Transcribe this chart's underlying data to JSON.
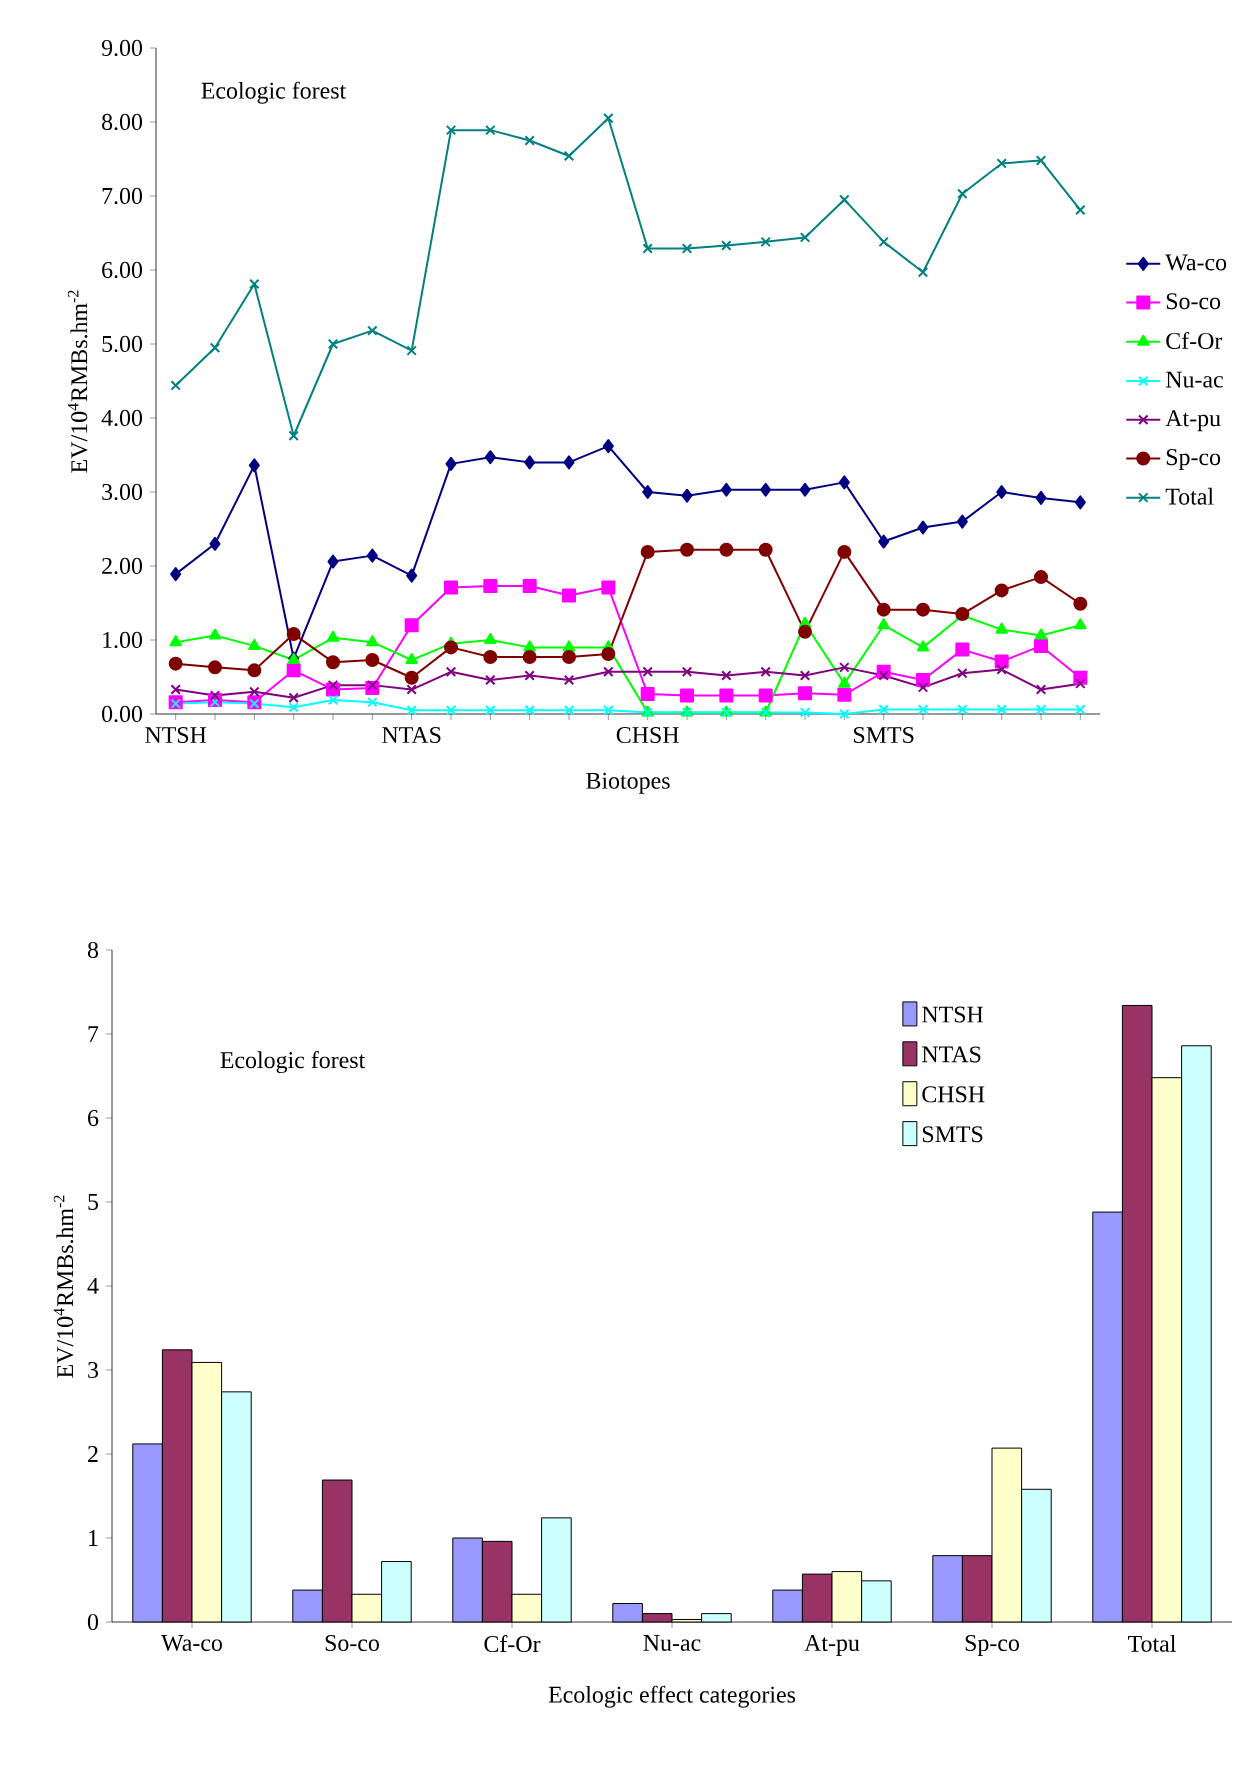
{
  "chart_data": [
    {
      "type": "line",
      "annotations": [
        "Ecologic forest"
      ],
      "xlabel": "Biotopes",
      "ylabel": "EV/10$^{4}$RMBs.hm$^{-2}$",
      "categories": [
        "NTSH",
        null,
        null,
        null,
        null,
        null,
        "NTAS",
        null,
        null,
        null,
        null,
        null,
        "CHSH",
        null,
        null,
        null,
        null,
        null,
        "SMTS",
        null,
        null,
        null,
        null,
        null
      ],
      "ylim": [
        0,
        9
      ],
      "yticks": [
        {
          "value": 0,
          "label": "0.00"
        },
        {
          "value": 1,
          "label": "1.00"
        },
        {
          "value": 2,
          "label": "2.00"
        },
        {
          "value": 3,
          "label": "3.00"
        },
        {
          "value": 4,
          "label": "4.00"
        },
        {
          "value": 5,
          "label": "5.00"
        },
        {
          "value": 6,
          "label": "6.00"
        },
        {
          "value": 7,
          "label": "7.00"
        },
        {
          "value": 8,
          "label": "8.00"
        },
        {
          "value": 9,
          "label": "9.00"
        }
      ],
      "legend": "right",
      "series": [
        {
          "name": "Wa-co",
          "color": "#000080",
          "marker": "diamond",
          "values": [
            1.89,
            2.3,
            3.36,
            0.75,
            2.06,
            2.14,
            1.87,
            3.38,
            3.47,
            3.4,
            3.4,
            3.62,
            3.0,
            2.95,
            3.03,
            3.03,
            3.03,
            3.13,
            2.33,
            2.52,
            2.6,
            3.0,
            2.92,
            2.86
          ]
        },
        {
          "name": "So-co",
          "color": "#ff00ff",
          "marker": "square",
          "values": [
            0.16,
            0.19,
            0.16,
            0.59,
            0.33,
            0.35,
            1.2,
            1.71,
            1.73,
            1.73,
            1.6,
            1.71,
            0.27,
            0.25,
            0.25,
            0.25,
            0.28,
            0.26,
            0.57,
            0.46,
            0.87,
            0.71,
            0.92,
            0.49
          ]
        },
        {
          "name": "Cf-Or",
          "color": "#00ff00",
          "marker": "triangle",
          "values": [
            0.97,
            1.06,
            0.92,
            0.73,
            1.03,
            0.97,
            0.73,
            0.95,
            1.0,
            0.9,
            0.9,
            0.9,
            0.02,
            0.02,
            0.02,
            0.02,
            1.22,
            0.41,
            1.2,
            0.9,
            1.33,
            1.14,
            1.06,
            1.2
          ]
        },
        {
          "name": "Nu-ac",
          "color": "#00ffff",
          "marker": "cross",
          "values": [
            0.14,
            0.16,
            0.14,
            0.09,
            0.19,
            0.16,
            0.05,
            0.05,
            0.05,
            0.05,
            0.05,
            0.05,
            0.02,
            0.02,
            0.02,
            0.02,
            0.02,
            0.0,
            0.06,
            0.06,
            0.06,
            0.06,
            0.06,
            0.06
          ]
        },
        {
          "name": "At-pu",
          "color": "#800080",
          "marker": "cross",
          "values": [
            0.33,
            0.25,
            0.3,
            0.22,
            0.39,
            0.39,
            0.33,
            0.57,
            0.46,
            0.52,
            0.46,
            0.57,
            0.57,
            0.57,
            0.52,
            0.57,
            0.52,
            0.63,
            0.52,
            0.36,
            0.55,
            0.6,
            0.33,
            0.41
          ]
        },
        {
          "name": "Sp-co",
          "color": "#800000",
          "marker": "circle",
          "values": [
            0.68,
            0.63,
            0.59,
            1.08,
            0.7,
            0.73,
            0.49,
            0.9,
            0.77,
            0.77,
            0.77,
            0.81,
            2.19,
            2.22,
            2.22,
            2.22,
            1.11,
            2.19,
            1.41,
            1.41,
            1.35,
            1.67,
            1.85,
            1.49
          ]
        },
        {
          "name": "Total",
          "color": "#008080",
          "marker": "cross",
          "values": [
            4.44,
            4.95,
            5.81,
            3.76,
            5.0,
            5.18,
            4.91,
            7.89,
            7.89,
            7.75,
            7.54,
            8.05,
            6.29,
            6.29,
            6.33,
            6.38,
            6.44,
            6.95,
            6.38,
            5.97,
            7.03,
            7.44,
            7.48,
            6.81
          ]
        }
      ]
    },
    {
      "type": "bar",
      "annotations": [
        "Ecologic forest"
      ],
      "xlabel": "Ecologic effect categories",
      "ylabel": "EV/10$^{4}$RMBs.hm$^{-2}$",
      "categories": [
        "Wa-co",
        "So-co",
        "Cf-Or",
        "Nu-ac",
        "At-pu",
        "Sp-co",
        "Total"
      ],
      "ylim": [
        0,
        8
      ],
      "yticks": [
        0,
        1,
        2,
        3,
        4,
        5,
        6,
        7,
        8
      ],
      "legend": "top right",
      "series": [
        {
          "name": "NTSH",
          "color": "#9999ff",
          "values": [
            2.12,
            0.38,
            1.0,
            0.22,
            0.38,
            0.79,
            4.88
          ]
        },
        {
          "name": "NTAS",
          "color": "#993366",
          "values": [
            3.24,
            1.69,
            0.96,
            0.1,
            0.57,
            0.79,
            7.34
          ]
        },
        {
          "name": "CHSH",
          "color": "#ffffcc",
          "values": [
            3.09,
            0.33,
            0.33,
            0.03,
            0.6,
            2.07,
            6.48
          ]
        },
        {
          "name": "SMTS",
          "color": "#ccffff",
          "values": [
            2.74,
            0.72,
            1.24,
            0.1,
            0.49,
            1.58,
            6.86
          ]
        }
      ]
    }
  ]
}
